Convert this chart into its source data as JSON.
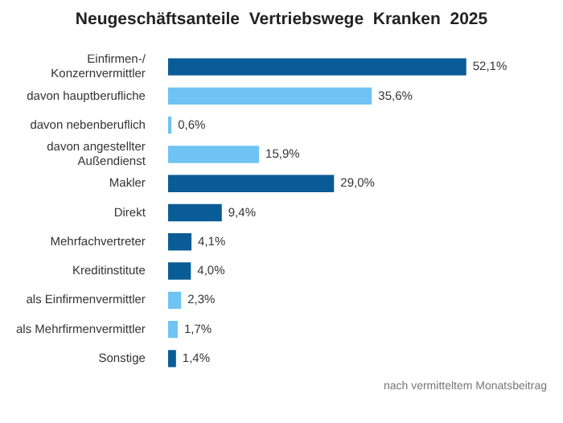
{
  "chart_data": {
    "type": "bar",
    "orientation": "horizontal",
    "title": "Neugeschäftsanteile  Vertriebswege  Kranken  2025",
    "categories": [
      "Einfirmen-/\nKonzernvermittler",
      "davon hauptberufliche",
      "davon nebenberuflich",
      "davon angestellter\nAußendienst",
      "Makler",
      "Direkt",
      "Mehrfachvertreter",
      "Kreditinstitute",
      "als Einfirmenvermittler",
      "als Mehrfirmenvermittler",
      "Sonstige"
    ],
    "values": [
      52.1,
      35.6,
      0.6,
      15.9,
      29.0,
      9.4,
      4.1,
      4.0,
      2.3,
      1.7,
      1.4
    ],
    "value_labels": [
      "52,1%",
      "35,6%",
      "0,6%",
      "15,9%",
      "29,0%",
      "9,4%",
      "4,1%",
      "4,0%",
      "2,3%",
      "1,7%",
      "1,4%"
    ],
    "colors": [
      "#0a5c97",
      "#6fc3f2",
      "#6fc3f2",
      "#6fc3f2",
      "#0a5c97",
      "#0a5c97",
      "#0a5c97",
      "#0a5c97",
      "#6fc3f2",
      "#6fc3f2",
      "#0a5c97"
    ],
    "tick_labels": "y",
    "legend": false,
    "annotations": [
      "nach vermitteltem Monatsbeitrag"
    ]
  }
}
